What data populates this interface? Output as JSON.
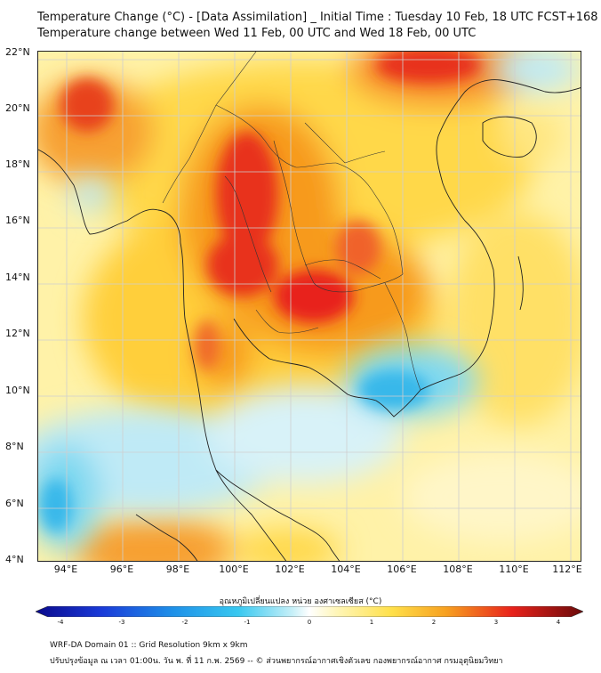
{
  "header": {
    "line1": "Temperature Change (°C) - [Data Assimilation] _ Initial Time : Tuesday 10 Feb, 18 UTC FCST+168",
    "line2": "Temperature change between Wed 11 Feb, 00 UTC and Wed 18 Feb, 00 UTC"
  },
  "axes": {
    "lat_labels": [
      "22°N",
      "20°N",
      "18°N",
      "16°N",
      "14°N",
      "12°N",
      "10°N",
      "8°N",
      "6°N",
      "4°N"
    ],
    "lon_labels": [
      "94°E",
      "96°E",
      "98°E",
      "100°E",
      "102°E",
      "104°E",
      "106°E",
      "108°E",
      "110°E",
      "112°E"
    ],
    "lat_range": [
      4,
      22.2
    ],
    "lon_range": [
      93,
      112.4
    ]
  },
  "colorbar": {
    "title": "อุณหภูมิเปลี่ยนแปลง หน่วย องศาเซลเซียส (°C)",
    "range": [
      -4,
      4
    ],
    "ticks": [
      "-4",
      "-3",
      "-2",
      "-1",
      "0",
      "1",
      "2",
      "3",
      "4"
    ]
  },
  "footer": {
    "line1": "WRF-DA Domain 01 :: Grid Resolution 9km x 9km",
    "line2": "ปรับปรุงข้อมูล ณ เวลา 01:00น. วัน พ. ที่ 11 ก.พ. 2569 -- © ส่วนพยากรณ์อากาศเชิงตัวเลข กองพยากรณ์อากาศ กรมอุตุนิยมวิทยา"
  },
  "colors": {
    "strong_warm": "#e8221b",
    "warm": "#f79a1e",
    "mild_warm": "#ffe066",
    "neutral": "#fff6b8",
    "cool": "#7fd8f0",
    "strong_cool": "#38b8ea",
    "coastline": "#222222"
  }
}
